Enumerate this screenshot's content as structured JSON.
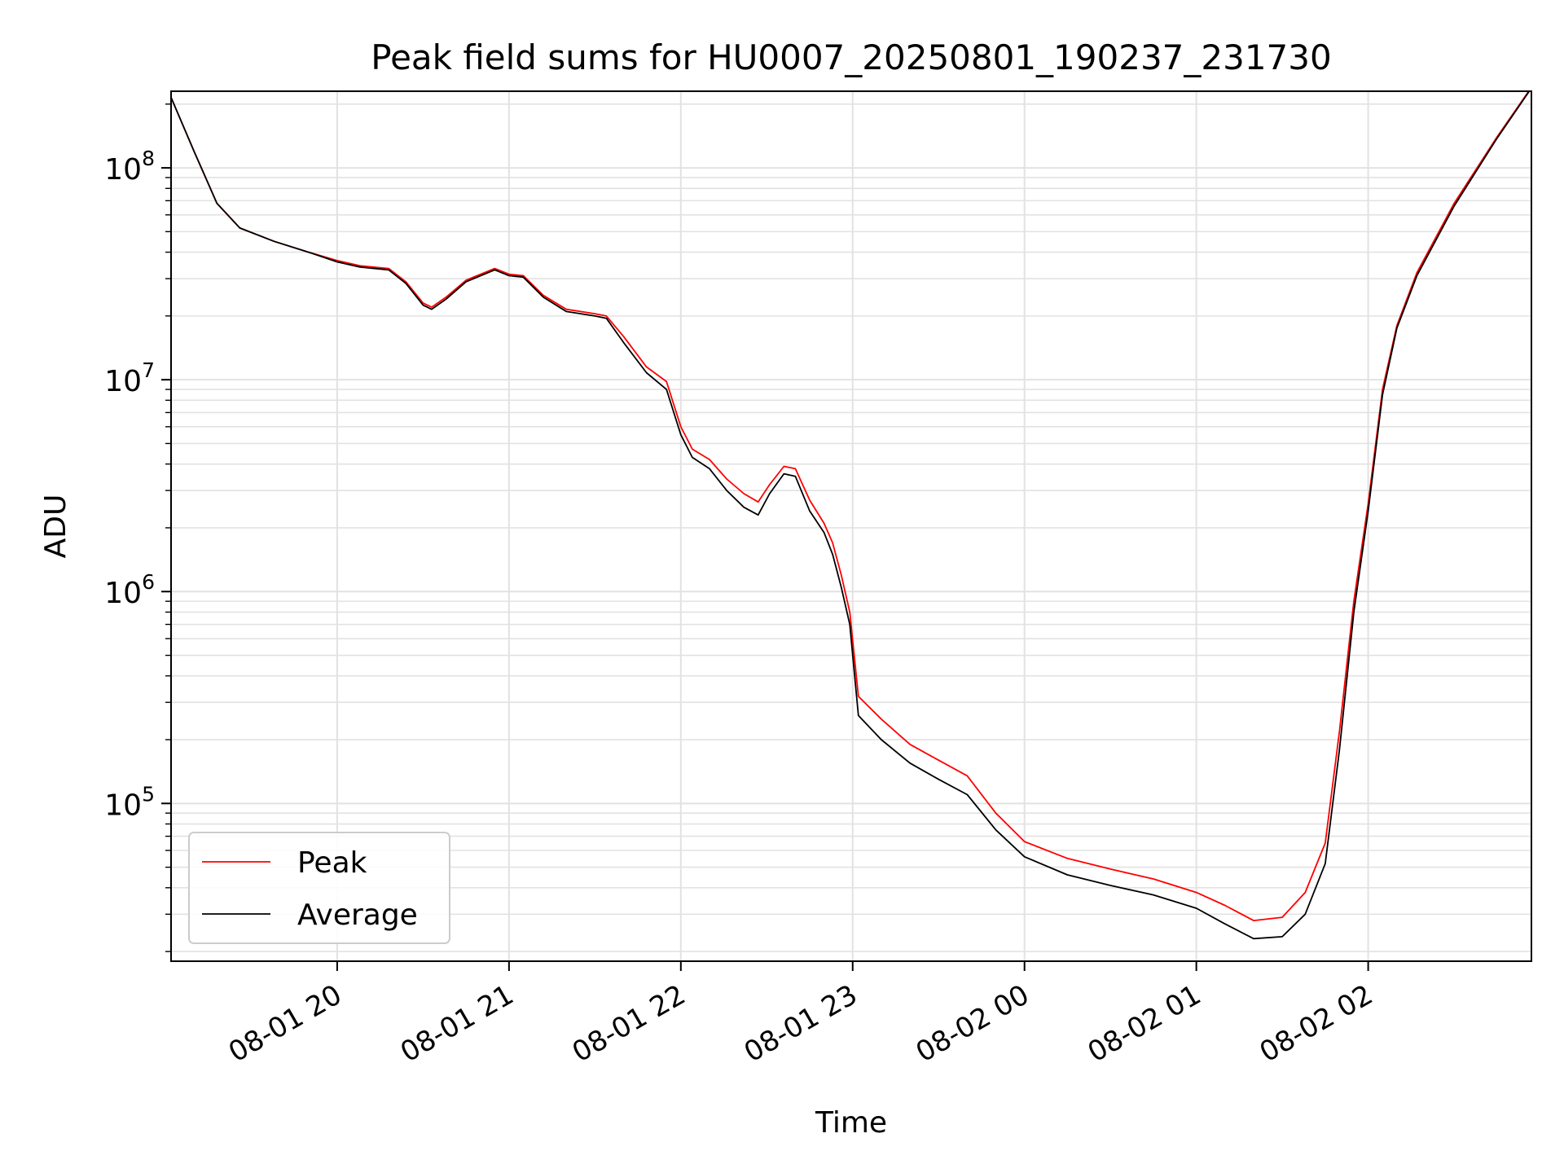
{
  "chart_data": {
    "type": "line",
    "title": "Peak field sums for HU0007_20250801_190237_231730",
    "xlabel": "Time",
    "ylabel": "ADU",
    "y_scale": "log",
    "ylim": [
      18000,
      230000000
    ],
    "xlim": [
      "2025-08-01 19:02",
      "2025-08-02 02:57"
    ],
    "grid": true,
    "legend_position": "lower-left",
    "x_ticks": [
      {
        "t": "2025-08-01 20:00",
        "label": "08-01 20"
      },
      {
        "t": "2025-08-01 21:00",
        "label": "08-01 21"
      },
      {
        "t": "2025-08-01 22:00",
        "label": "08-01 22"
      },
      {
        "t": "2025-08-01 23:00",
        "label": "08-01 23"
      },
      {
        "t": "2025-08-02 00:00",
        "label": "08-02 00"
      },
      {
        "t": "2025-08-02 01:00",
        "label": "08-02 01"
      },
      {
        "t": "2025-08-02 02:00",
        "label": "08-02 02"
      }
    ],
    "y_ticks": [
      {
        "value": 100000,
        "base": "10",
        "exp": "5"
      },
      {
        "value": 1000000,
        "base": "10",
        "exp": "6"
      },
      {
        "value": 10000000,
        "base": "10",
        "exp": "7"
      },
      {
        "value": 100000000,
        "base": "10",
        "exp": "8"
      }
    ],
    "series": [
      {
        "name": "Peak",
        "color": "#ff0000",
        "points": [
          [
            "2025-08-01 19:02",
            215000000
          ],
          [
            "2025-08-01 19:10",
            120000000
          ],
          [
            "2025-08-01 19:18",
            68000000
          ],
          [
            "2025-08-01 19:26",
            52000000
          ],
          [
            "2025-08-01 19:38",
            45000000
          ],
          [
            "2025-08-01 19:50",
            40000000
          ],
          [
            "2025-08-01 20:00",
            36500000
          ],
          [
            "2025-08-01 20:08",
            34500000
          ],
          [
            "2025-08-01 20:18",
            33500000
          ],
          [
            "2025-08-01 20:24",
            29000000
          ],
          [
            "2025-08-01 20:30",
            23000000
          ],
          [
            "2025-08-01 20:33",
            22000000
          ],
          [
            "2025-08-01 20:38",
            24500000
          ],
          [
            "2025-08-01 20:45",
            29500000
          ],
          [
            "2025-08-01 20:55",
            33500000
          ],
          [
            "2025-08-01 21:00",
            31500000
          ],
          [
            "2025-08-01 21:05",
            31000000
          ],
          [
            "2025-08-01 21:12",
            25000000
          ],
          [
            "2025-08-01 21:20",
            21500000
          ],
          [
            "2025-08-01 21:30",
            20500000
          ],
          [
            "2025-08-01 21:34",
            20000000
          ],
          [
            "2025-08-01 21:40",
            16000000
          ],
          [
            "2025-08-01 21:48",
            11500000
          ],
          [
            "2025-08-01 21:55",
            9800000
          ],
          [
            "2025-08-01 22:00",
            6000000
          ],
          [
            "2025-08-01 22:04",
            4700000
          ],
          [
            "2025-08-01 22:10",
            4200000
          ],
          [
            "2025-08-01 22:16",
            3400000
          ],
          [
            "2025-08-01 22:22",
            2900000
          ],
          [
            "2025-08-01 22:27",
            2650000
          ],
          [
            "2025-08-01 22:31",
            3200000
          ],
          [
            "2025-08-01 22:36",
            3900000
          ],
          [
            "2025-08-01 22:40",
            3800000
          ],
          [
            "2025-08-01 22:45",
            2700000
          ],
          [
            "2025-08-01 22:50",
            2100000
          ],
          [
            "2025-08-01 22:53",
            1700000
          ],
          [
            "2025-08-01 22:56",
            1200000
          ],
          [
            "2025-08-01 22:59",
            800000
          ],
          [
            "2025-08-01 23:02",
            320000
          ],
          [
            "2025-08-01 23:10",
            250000
          ],
          [
            "2025-08-01 23:20",
            190000
          ],
          [
            "2025-08-01 23:30",
            160000
          ],
          [
            "2025-08-01 23:40",
            135000
          ],
          [
            "2025-08-01 23:50",
            90000
          ],
          [
            "2025-08-02 00:00",
            66000
          ],
          [
            "2025-08-02 00:15",
            55000
          ],
          [
            "2025-08-02 00:30",
            49000
          ],
          [
            "2025-08-02 00:45",
            44000
          ],
          [
            "2025-08-02 01:00",
            38000
          ],
          [
            "2025-08-02 01:10",
            33000
          ],
          [
            "2025-08-02 01:20",
            28000
          ],
          [
            "2025-08-02 01:30",
            29000
          ],
          [
            "2025-08-02 01:38",
            38000
          ],
          [
            "2025-08-02 01:45",
            65000
          ],
          [
            "2025-08-02 01:50",
            220000
          ],
          [
            "2025-08-02 01:55",
            900000
          ],
          [
            "2025-08-02 02:00",
            2600000
          ],
          [
            "2025-08-02 02:05",
            9000000
          ],
          [
            "2025-08-02 02:10",
            18000000
          ],
          [
            "2025-08-02 02:17",
            32000000
          ],
          [
            "2025-08-02 02:30",
            68000000
          ],
          [
            "2025-08-02 02:45",
            140000000
          ],
          [
            "2025-08-02 02:57",
            240000000
          ]
        ]
      },
      {
        "name": "Average",
        "color": "#000000",
        "points": [
          [
            "2025-08-01 19:02",
            215000000
          ],
          [
            "2025-08-01 19:10",
            120000000
          ],
          [
            "2025-08-01 19:18",
            68000000
          ],
          [
            "2025-08-01 19:26",
            52000000
          ],
          [
            "2025-08-01 19:38",
            45000000
          ],
          [
            "2025-08-01 19:50",
            40000000
          ],
          [
            "2025-08-01 20:00",
            36000000
          ],
          [
            "2025-08-01 20:08",
            34000000
          ],
          [
            "2025-08-01 20:18",
            33000000
          ],
          [
            "2025-08-01 20:24",
            28500000
          ],
          [
            "2025-08-01 20:30",
            22500000
          ],
          [
            "2025-08-01 20:33",
            21500000
          ],
          [
            "2025-08-01 20:38",
            24000000
          ],
          [
            "2025-08-01 20:45",
            29000000
          ],
          [
            "2025-08-01 20:55",
            33000000
          ],
          [
            "2025-08-01 21:00",
            31000000
          ],
          [
            "2025-08-01 21:05",
            30500000
          ],
          [
            "2025-08-01 21:12",
            24500000
          ],
          [
            "2025-08-01 21:20",
            21000000
          ],
          [
            "2025-08-01 21:30",
            20000000
          ],
          [
            "2025-08-01 21:34",
            19500000
          ],
          [
            "2025-08-01 21:40",
            15000000
          ],
          [
            "2025-08-01 21:48",
            10800000
          ],
          [
            "2025-08-01 21:55",
            9000000
          ],
          [
            "2025-08-01 22:00",
            5500000
          ],
          [
            "2025-08-01 22:04",
            4300000
          ],
          [
            "2025-08-01 22:10",
            3800000
          ],
          [
            "2025-08-01 22:16",
            3000000
          ],
          [
            "2025-08-01 22:22",
            2500000
          ],
          [
            "2025-08-01 22:27",
            2300000
          ],
          [
            "2025-08-01 22:31",
            2900000
          ],
          [
            "2025-08-01 22:36",
            3600000
          ],
          [
            "2025-08-01 22:40",
            3500000
          ],
          [
            "2025-08-01 22:45",
            2400000
          ],
          [
            "2025-08-01 22:50",
            1900000
          ],
          [
            "2025-08-01 22:53",
            1500000
          ],
          [
            "2025-08-01 22:56",
            1050000
          ],
          [
            "2025-08-01 22:59",
            700000
          ],
          [
            "2025-08-01 23:02",
            260000
          ],
          [
            "2025-08-01 23:10",
            200000
          ],
          [
            "2025-08-01 23:20",
            155000
          ],
          [
            "2025-08-01 23:30",
            130000
          ],
          [
            "2025-08-01 23:40",
            110000
          ],
          [
            "2025-08-01 23:50",
            75000
          ],
          [
            "2025-08-02 00:00",
            56000
          ],
          [
            "2025-08-02 00:15",
            46000
          ],
          [
            "2025-08-02 00:30",
            41000
          ],
          [
            "2025-08-02 00:45",
            37000
          ],
          [
            "2025-08-02 01:00",
            32000
          ],
          [
            "2025-08-02 01:10",
            27000
          ],
          [
            "2025-08-02 01:20",
            23000
          ],
          [
            "2025-08-02 01:30",
            23500
          ],
          [
            "2025-08-02 01:38",
            30000
          ],
          [
            "2025-08-02 01:45",
            52000
          ],
          [
            "2025-08-02 01:50",
            180000
          ],
          [
            "2025-08-02 01:55",
            800000
          ],
          [
            "2025-08-02 02:00",
            2400000
          ],
          [
            "2025-08-02 02:05",
            8500000
          ],
          [
            "2025-08-02 02:10",
            17500000
          ],
          [
            "2025-08-02 02:17",
            31000000
          ],
          [
            "2025-08-02 02:30",
            66000000
          ],
          [
            "2025-08-02 02:45",
            138000000
          ],
          [
            "2025-08-02 02:57",
            238000000
          ]
        ]
      }
    ]
  }
}
